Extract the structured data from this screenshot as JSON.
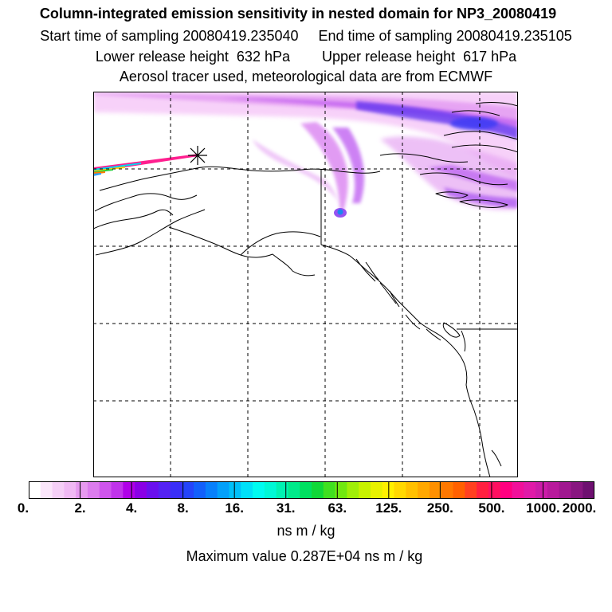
{
  "header": {
    "title": "Column-integrated emission sensitivity in nested domain for NP3_20080419",
    "line1": "Start time of sampling 20080419.235040     End time of sampling 20080419.235105",
    "line2": "Lower release height  632 hPa        Upper release height  617 hPa",
    "line3": "Aerosol tracer used, meteorological data are from ECMWF"
  },
  "legend": {
    "tick_labels": [
      "0.",
      "2.",
      "4.",
      "8.",
      "16.",
      "31.",
      "63.",
      "125.",
      "250.",
      "500.",
      "1000.",
      "2000."
    ],
    "unit": "ns m / kg",
    "max_value": "Maximum value  0.287E+04 ns m / kg",
    "colors": [
      "#ffffff",
      "#fbe6fb",
      "#f5cff7",
      "#f0b9f4",
      "#e79af0",
      "#dc7cee",
      "#cf55ec",
      "#c033ea",
      "#b000e8",
      "#8a00e6",
      "#6a10ee",
      "#5522f3",
      "#3a2ef7",
      "#2444fa",
      "#1260fb",
      "#0880fb",
      "#04a0fa",
      "#00c0f9",
      "#00e0f8",
      "#00fbf0",
      "#00f8d6",
      "#00f2b2",
      "#00ea8a",
      "#00e060",
      "#10d838",
      "#40e020",
      "#70e810",
      "#a0ee08",
      "#c8f200",
      "#e8f200",
      "#fff000",
      "#ffd800",
      "#ffc000",
      "#ffa800",
      "#ff9000",
      "#ff7800",
      "#ff6000",
      "#ff4020",
      "#ff2040",
      "#ff1060",
      "#ff0080",
      "#f0109a",
      "#e01aa8",
      "#cc1ca8",
      "#b81a9c",
      "#a01890",
      "#881680",
      "#6e1070"
    ]
  },
  "map": {
    "release_marker": "asterisk-marker-icon",
    "hotspot_color": "#1a86f0",
    "plume_colors": [
      "#f2a6f4",
      "#d45ef0",
      "#a020ee",
      "#5a34f0"
    ]
  }
}
